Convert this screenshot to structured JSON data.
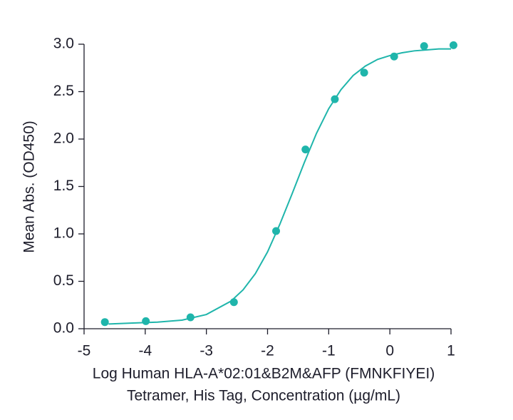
{
  "chart_data": {
    "type": "scatter",
    "xlabel": [
      "Log Human HLA-A*02:01&B2M&AFP (FMNKFIYEI)",
      "Tetramer, His Tag, Concentration (µg/mL)"
    ],
    "ylabel": "Mean Abs. (OD450)",
    "xlim": [
      -5,
      1
    ],
    "xticks": [
      -5,
      -4,
      -3,
      -2,
      -1,
      0,
      1
    ],
    "ylim": [
      0,
      3
    ],
    "yticks": [
      {
        "value": 0,
        "label": "0.0"
      },
      0.5,
      {
        "value": 1,
        "label": "1.0"
      },
      1.5,
      {
        "value": 2,
        "label": "2.0"
      },
      2.5,
      {
        "value": 3,
        "label": "3.0"
      }
    ],
    "grid": false,
    "series": [
      {
        "kind": "points",
        "color": "#1fb5ab",
        "x": [
          -4.66,
          -3.99,
          -3.26,
          -2.55,
          -1.86,
          -1.38,
          -0.9,
          -0.42,
          0.07,
          0.56,
          1.04
        ],
        "values": [
          0.07,
          0.08,
          0.12,
          0.28,
          1.03,
          1.89,
          2.42,
          2.7,
          2.87,
          2.98,
          2.99
        ]
      },
      {
        "kind": "line",
        "color": "#1fb5ab",
        "x": [
          -4.6,
          -4.2,
          -3.8,
          -3.4,
          -3.0,
          -2.6,
          -2.4,
          -2.2,
          -2.0,
          -1.8,
          -1.6,
          -1.4,
          -1.2,
          -1.0,
          -0.8,
          -0.6,
          -0.4,
          -0.2,
          0,
          0.2,
          0.4,
          0.6,
          0.8,
          1.0
        ],
        "values": [
          0.05,
          0.06,
          0.07,
          0.09,
          0.15,
          0.29,
          0.41,
          0.58,
          0.81,
          1.1,
          1.42,
          1.75,
          2.06,
          2.32,
          2.52,
          2.67,
          2.77,
          2.84,
          2.88,
          2.91,
          2.93,
          2.94,
          2.95,
          2.95
        ]
      }
    ]
  }
}
